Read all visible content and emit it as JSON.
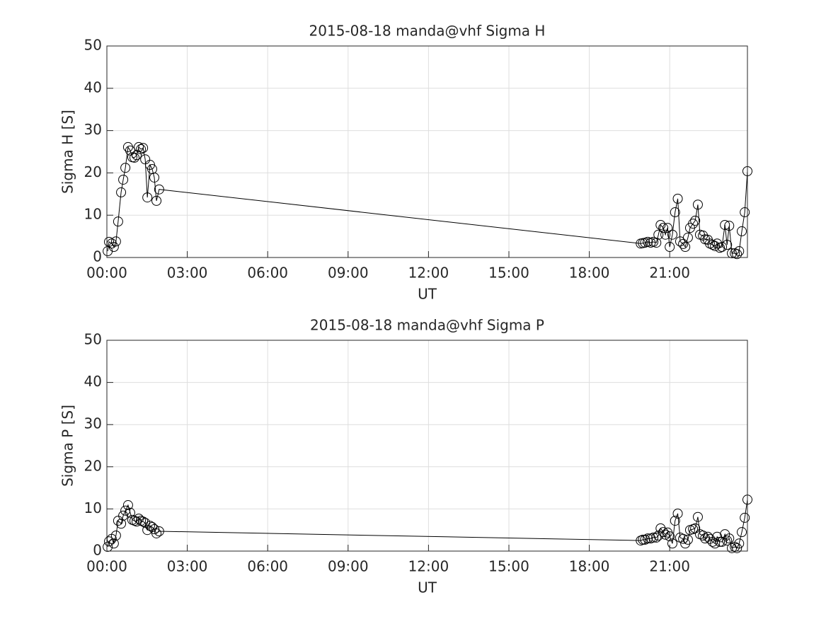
{
  "chart_data": [
    {
      "type": "line",
      "title": "2015-08-18  manda@vhf Sigma H",
      "xlabel": "UT",
      "ylabel": "Sigma H [S]",
      "grid": true,
      "x": [
        0.03,
        0.08,
        0.18,
        0.26,
        0.34,
        0.42,
        0.53,
        0.61,
        0.69,
        0.79,
        0.87,
        0.95,
        1.03,
        1.11,
        1.19,
        1.27,
        1.35,
        1.43,
        1.51,
        1.61,
        1.69,
        1.77,
        1.85,
        1.95,
        19.92,
        20.0,
        20.08,
        20.18,
        20.29,
        20.39,
        20.5,
        20.58,
        20.66,
        20.76,
        20.84,
        20.92,
        21.0,
        21.1,
        21.2,
        21.3,
        21.39,
        21.5,
        21.58,
        21.68,
        21.76,
        21.87,
        21.95,
        22.05,
        22.13,
        22.24,
        22.32,
        22.42,
        22.5,
        22.6,
        22.69,
        22.77,
        22.87,
        22.95,
        23.06,
        23.14,
        23.22,
        23.32,
        23.43,
        23.51,
        23.59,
        23.69,
        23.8,
        23.9
      ],
      "series": [
        {
          "color": "#000000",
          "values": [
            1.5,
            3.7,
            3.3,
            2.5,
            3.8,
            8.5,
            15.4,
            18.4,
            21.2,
            26.1,
            25.3,
            23.7,
            23.6,
            24.2,
            26.1,
            25.6,
            25.9,
            23.2,
            14.2,
            21.9,
            20.9,
            18.9,
            13.4,
            16.1,
            3.3,
            3.4,
            3.5,
            3.7,
            3.5,
            3.7,
            3.5,
            5.4,
            7.7,
            7.0,
            5.4,
            7.0,
            2.5,
            5.4,
            10.7,
            13.9,
            3.8,
            3.2,
            2.5,
            4.7,
            7.0,
            8.0,
            8.7,
            12.5,
            5.4,
            5.2,
            4.3,
            4.2,
            3.3,
            3.0,
            2.7,
            3.3,
            2.3,
            2.5,
            7.7,
            3.0,
            7.5,
            1.0,
            1.0,
            0.8,
            1.5,
            6.2,
            10.7,
            20.4
          ]
        }
      ],
      "xlim": [
        0,
        23.9
      ],
      "xticks": [
        {
          "value": 0,
          "label": "00:00"
        },
        {
          "value": 3,
          "label": "03:00"
        },
        {
          "value": 6,
          "label": "06:00"
        },
        {
          "value": 9,
          "label": "09:00"
        },
        {
          "value": 12,
          "label": "12:00"
        },
        {
          "value": 15,
          "label": "15:00"
        },
        {
          "value": 18,
          "label": "18:00"
        },
        {
          "value": 21,
          "label": "21:00"
        }
      ],
      "ylim": [
        0,
        50
      ],
      "yticks": [
        0,
        10,
        20,
        30,
        40,
        50
      ]
    },
    {
      "type": "line",
      "title": "2015-08-18  manda@vhf Sigma P",
      "xlabel": "UT",
      "ylabel": "Sigma P [S]",
      "grid": true,
      "x": [
        0.03,
        0.08,
        0.18,
        0.26,
        0.34,
        0.42,
        0.53,
        0.61,
        0.69,
        0.79,
        0.87,
        0.95,
        1.03,
        1.11,
        1.19,
        1.27,
        1.35,
        1.43,
        1.51,
        1.61,
        1.69,
        1.77,
        1.85,
        1.95,
        19.92,
        20.0,
        20.08,
        20.18,
        20.29,
        20.39,
        20.5,
        20.58,
        20.66,
        20.76,
        20.84,
        20.92,
        21.0,
        21.1,
        21.2,
        21.3,
        21.39,
        21.5,
        21.58,
        21.68,
        21.76,
        21.87,
        21.95,
        22.05,
        22.13,
        22.24,
        22.32,
        22.42,
        22.5,
        22.6,
        22.69,
        22.77,
        22.87,
        22.95,
        23.06,
        23.14,
        23.22,
        23.32,
        23.43,
        23.51,
        23.59,
        23.69,
        23.8,
        23.9
      ],
      "series": [
        {
          "color": "#000000",
          "values": [
            1.0,
            2.3,
            2.9,
            1.8,
            3.7,
            7.2,
            6.5,
            8.4,
            9.6,
            10.9,
            9.1,
            7.4,
            7.2,
            7.0,
            7.7,
            7.2,
            7.0,
            6.7,
            5.0,
            6.0,
            5.7,
            5.2,
            4.2,
            4.7,
            2.5,
            2.7,
            2.7,
            3.0,
            3.0,
            3.2,
            3.2,
            3.7,
            5.4,
            4.5,
            3.9,
            4.4,
            3.5,
            1.8,
            7.2,
            8.9,
            3.2,
            2.9,
            1.8,
            2.7,
            5.0,
            5.2,
            5.4,
            8.1,
            4.0,
            3.7,
            3.0,
            3.4,
            2.9,
            2.2,
            1.8,
            3.4,
            2.2,
            2.2,
            4.0,
            2.5,
            3.0,
            0.7,
            1.0,
            0.7,
            1.8,
            4.5,
            7.9,
            12.2
          ]
        }
      ],
      "xlim": [
        0,
        23.9
      ],
      "xticks": [
        {
          "value": 0,
          "label": "00:00"
        },
        {
          "value": 3,
          "label": "03:00"
        },
        {
          "value": 6,
          "label": "06:00"
        },
        {
          "value": 9,
          "label": "09:00"
        },
        {
          "value": 12,
          "label": "12:00"
        },
        {
          "value": 15,
          "label": "15:00"
        },
        {
          "value": 18,
          "label": "18:00"
        },
        {
          "value": 21,
          "label": "21:00"
        }
      ],
      "ylim": [
        0,
        50
      ],
      "yticks": [
        0,
        10,
        20,
        30,
        40,
        50
      ]
    }
  ]
}
